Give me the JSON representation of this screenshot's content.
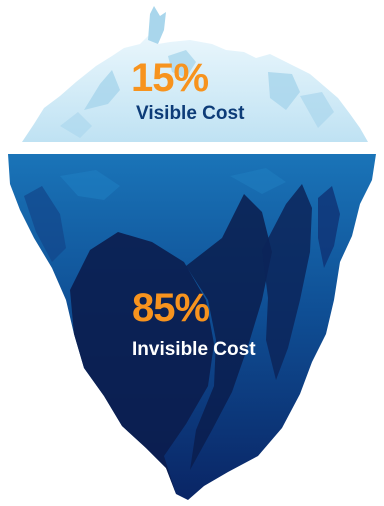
{
  "visible": {
    "percent": "15%",
    "label": "Visible Cost"
  },
  "invisible": {
    "percent": "85%",
    "label": "Invisible Cost"
  },
  "colors": {
    "percent_text": "#f7931e",
    "visible_label_text": "#0d3c78",
    "invisible_label_text": "#ffffff",
    "ice_tip": "#cfe9f5",
    "ice_tip_highlight": "#a9d6ec",
    "water_top": "#1a74b8",
    "water_bottom": "#091e54",
    "deep_shadow": "#0b1d4e"
  }
}
